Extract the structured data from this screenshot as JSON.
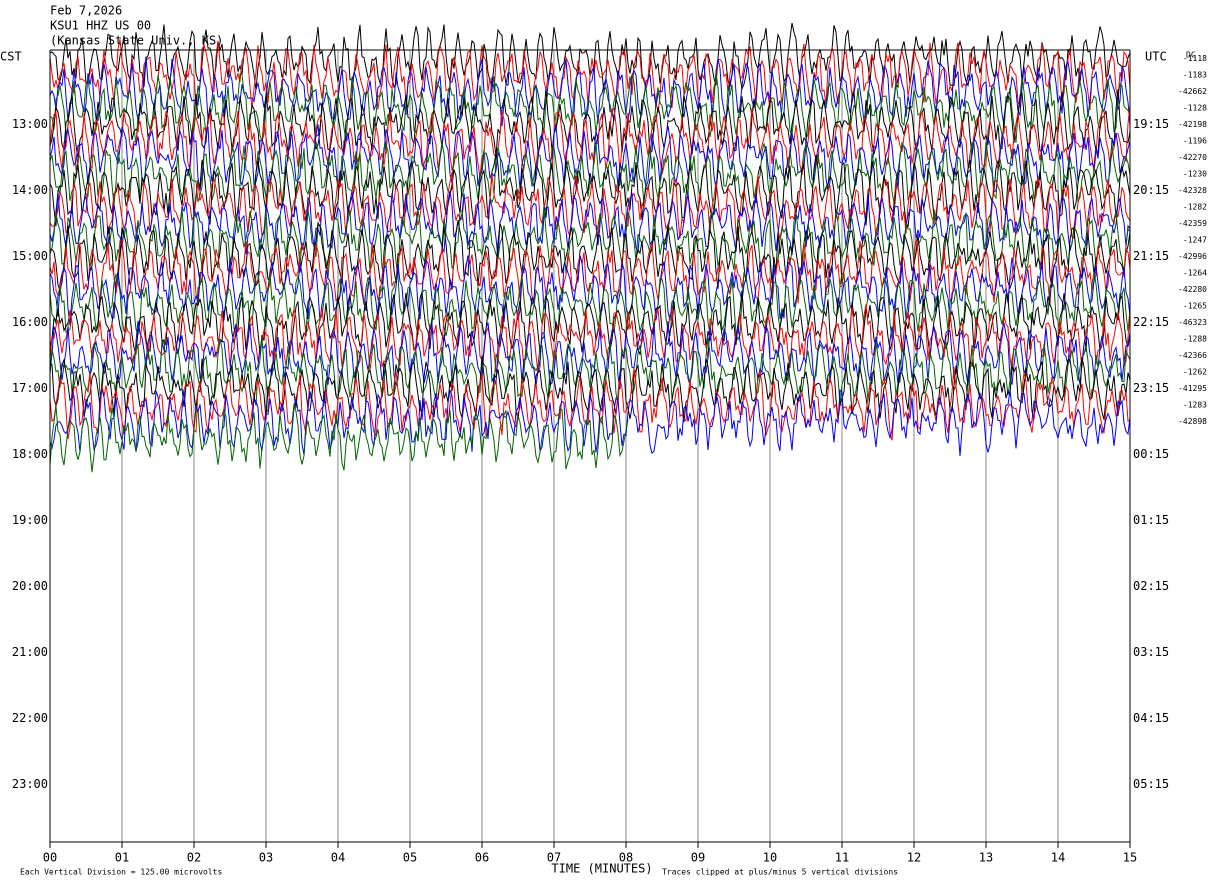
{
  "header": {
    "lines": [
      "Feb 7,2026",
      "KSU1 HHZ US 00",
      "(Kansas State Univ., KS)"
    ]
  },
  "left_axis": {
    "label": "CST",
    "ticks": [
      "13:00",
      "14:00",
      "15:00",
      "16:00",
      "17:00",
      "18:00",
      "19:00",
      "20:00",
      "21:00",
      "22:00",
      "23:00"
    ]
  },
  "right_axis": {
    "label": "UTC",
    "ticks": [
      "19:15",
      "20:15",
      "21:15",
      "22:15",
      "23:15",
      "00:15",
      "01:15",
      "02:15",
      "03:15",
      "04:15",
      "05:15"
    ]
  },
  "dc": {
    "label": "DC",
    "values": [
      "-1118",
      "-1183",
      "-42662",
      "-1128",
      "-42198",
      "-1196",
      "-42270",
      "-1230",
      "-42328",
      "-1282",
      "-42359",
      "-1247",
      "-42996",
      "-1264",
      "-42280",
      "-1265",
      "-46323",
      "-1288",
      "-42366",
      "-1262",
      "-41295",
      "-1283",
      "-42898"
    ]
  },
  "x_axis": {
    "label": "TIME (MINUTES)",
    "ticks": [
      "00",
      "01",
      "02",
      "03",
      "04",
      "05",
      "06",
      "07",
      "08",
      "09",
      "10",
      "11",
      "12",
      "13",
      "14",
      "15"
    ]
  },
  "footer": {
    "scale": "Each Vertical Division =  125.00 microvolts",
    "clip": "Traces clipped at plus/minus 5 vertical divisions"
  },
  "trace_colors": [
    "#000000",
    "#ff0000",
    "#0000ff",
    "#006400"
  ]
}
